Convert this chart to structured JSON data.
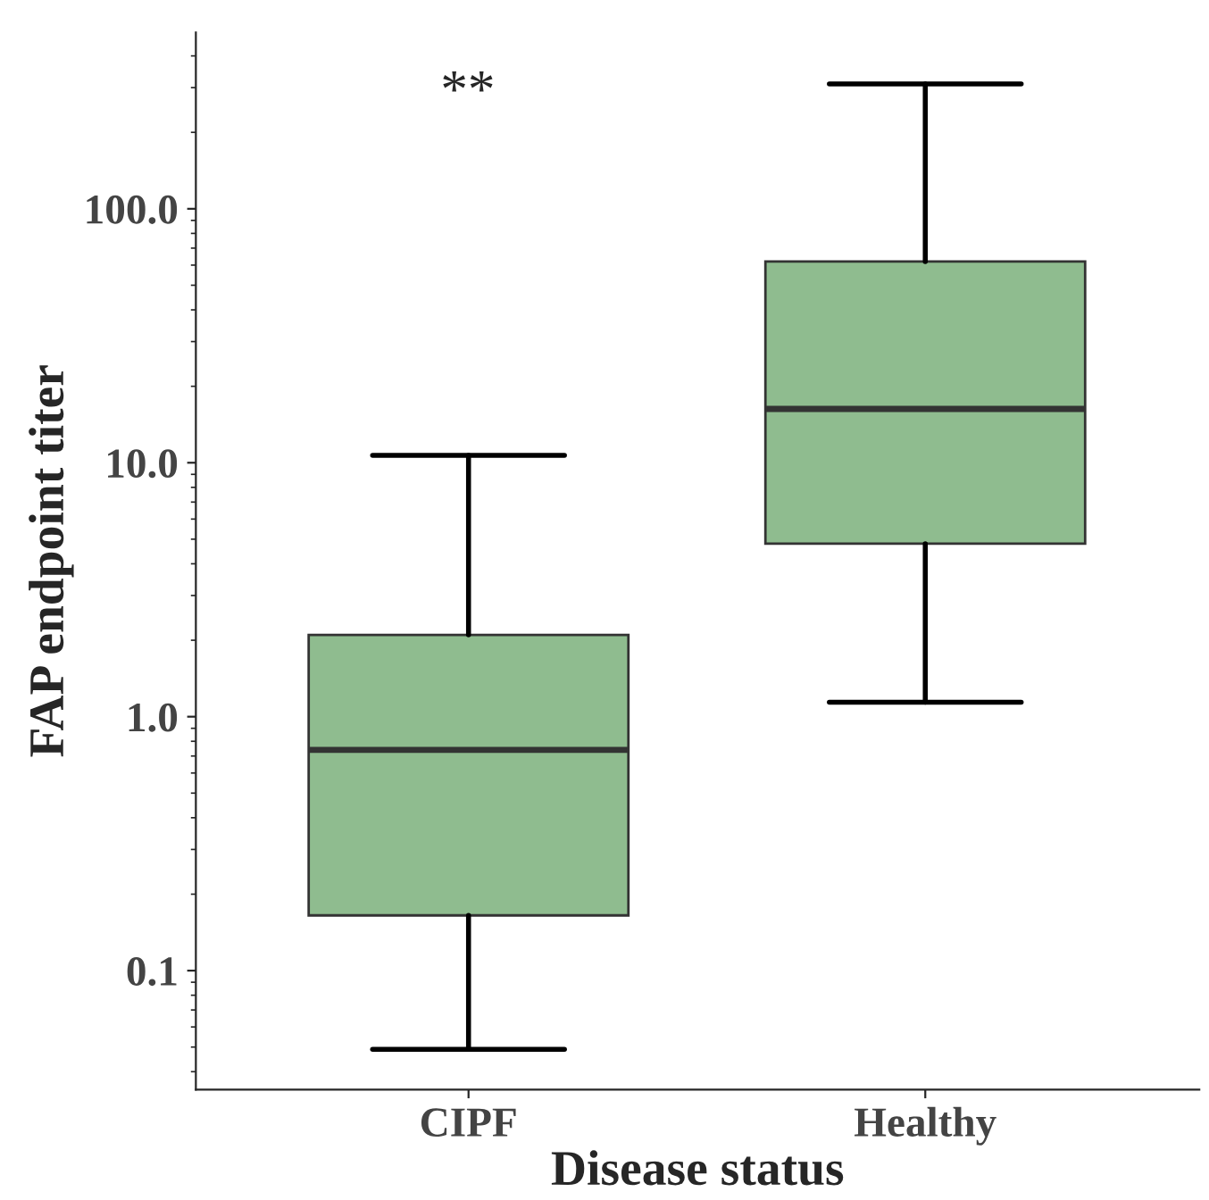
{
  "chart_data": {
    "type": "box",
    "xlabel": "Disease status",
    "ylabel": "FAP endpoint titer",
    "categories": [
      "CIPF",
      "Healthy"
    ],
    "color": "#8fbc8f",
    "log": true,
    "ylim": [
      0.034,
      495
    ],
    "yticks": [
      {
        "value": 0.1,
        "label": "0.1"
      },
      {
        "value": 1,
        "label": "1.0"
      },
      {
        "value": 10,
        "label": "10.0"
      },
      {
        "value": 100,
        "label": "100.0"
      }
    ],
    "grid": false,
    "boxes": [
      {
        "low": 0.049,
        "q1": 0.165,
        "median": 0.74,
        "q3": 2.1,
        "high": 10.7
      },
      {
        "low": 1.14,
        "q1": 4.8,
        "median": 16.3,
        "q3": 62,
        "high": 310
      }
    ],
    "annotations": [
      "**"
    ]
  }
}
